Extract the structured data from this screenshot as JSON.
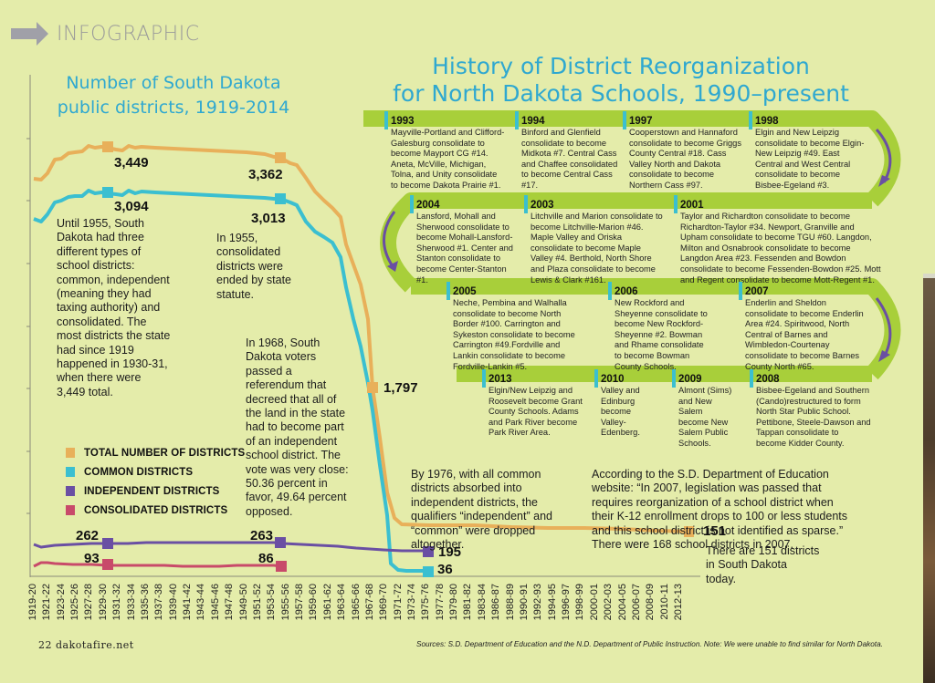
{
  "header": {
    "kicker": "INFOGRAPHIC",
    "kicker_icon": "arrow-right-icon"
  },
  "sd_chart": {
    "title_line1": "Number of South Dakota",
    "title_line2": "public districts, 1919-2014",
    "callouts": {
      "total_peak": "3,449",
      "total_1955": "3,362",
      "common_peak": "3,094",
      "common_1955": "3,013",
      "total_1968": "1,797",
      "independent_1930": "262",
      "independent_1955": "263",
      "independent_1976": "195",
      "consolidated_1930": "93",
      "consolidated_1955": "86",
      "common_1976": "36",
      "total_today": "151"
    },
    "notes": {
      "until_1955": "Until 1955, South Dakota had three different types of school districts: common, independent (meaning they had taxing authority) and consolidated. The most districts the state had since 1919 happened in 1930-31, when there were 3,449 total.",
      "in_1955": "In 1955, consolidated districts were ended by state statute.",
      "in_1968": "In 1968, South Dakota voters passed a referendum that decreed that all of the land in the state had to become part of an independent school district. The vote was very close: 50.36 percent in favor, 49.64 percent opposed.",
      "by_1976": "By 1976, with all common districts absorbed into independent districts, the qualifiers “independent” and “common” were dropped altogether.",
      "sd_doe": "According to the S.D. Department of Education website: “In 2007, legislation was passed that requires reorganization of a school district when their K-12 enrollment drops to 100 or less students and this school district is not identified as sparse.” There were 168 school districts in 2007.",
      "today": "There are 151 districts in South Dakota today."
    },
    "legend": [
      {
        "label": "TOTAL NUMBER OF DISTRICTS",
        "color": "#e8b05a"
      },
      {
        "label": "COMMON DISTRICTS",
        "color": "#3bbfd0"
      },
      {
        "label": "INDEPENDENT DISTRICTS",
        "color": "#6a4fa3"
      },
      {
        "label": "CONSOLIDATED DISTRICTS",
        "color": "#c84a6a"
      }
    ]
  },
  "chart_data": {
    "type": "line",
    "title": "Number of South Dakota public districts, 1919-2014",
    "xlabel": "",
    "ylabel": "",
    "x": [
      "1919-20",
      "1921-22",
      "1923-24",
      "1925-26",
      "1927-28",
      "1929-30",
      "1931-32",
      "1933-34",
      "1935-36",
      "1937-38",
      "1939-40",
      "1941-42",
      "1943-44",
      "1945-46",
      "1947-48",
      "1949-50",
      "1951-52",
      "1953-54",
      "1955-56",
      "1957-58",
      "1959-60",
      "1961-62",
      "1963-64",
      "1965-66",
      "1967-68",
      "1969-70",
      "1971-72",
      "1973-74",
      "1975-76",
      "1977-78",
      "1979-80",
      "1981-82",
      "1983-84",
      "1986-87",
      "1988-89",
      "1990-91",
      "1992-93",
      "1994-95",
      "1996-97",
      "1998-99",
      "2000-01",
      "2002-03",
      "2004-05",
      "2006-07",
      "2008-09",
      "2010-11",
      "2012-13"
    ],
    "series": [
      {
        "name": "Total number of districts",
        "color": "#e8b05a",
        "values": [
          3200,
          3300,
          3390,
          3410,
          3430,
          3449,
          3420,
          3430,
          3440,
          3430,
          3420,
          3415,
          3410,
          3405,
          3400,
          3390,
          3380,
          3370,
          3362,
          3300,
          3150,
          3000,
          2850,
          2500,
          1797,
          600,
          300,
          270,
          250,
          240,
          235,
          230,
          210,
          200,
          195,
          190,
          185,
          180,
          178,
          175,
          172,
          170,
          170,
          168,
          160,
          155,
          151
        ]
      },
      {
        "name": "Common districts",
        "color": "#3bbfd0",
        "values": [
          2880,
          2960,
          3040,
          3060,
          3070,
          3094,
          3070,
          3080,
          3090,
          3080,
          3070,
          3065,
          3060,
          3055,
          3050,
          3040,
          3030,
          3020,
          3013,
          2950,
          2800,
          2650,
          2500,
          2200,
          1600,
          300,
          60,
          40,
          36
        ]
      },
      {
        "name": "Independent districts",
        "color": "#6a4fa3",
        "values": [
          245,
          252,
          258,
          260,
          261,
          262,
          262,
          263,
          264,
          263,
          263,
          263,
          263,
          263,
          263,
          263,
          263,
          263,
          263,
          258,
          250,
          245,
          238,
          230,
          220,
          210,
          200,
          197,
          195
        ]
      },
      {
        "name": "Consolidated districts",
        "color": "#c84a6a",
        "values": [
          80,
          92,
          95,
          94,
          93,
          93,
          90,
          88,
          86,
          86,
          85,
          85,
          86,
          86,
          86,
          86,
          86,
          86,
          86
        ]
      }
    ],
    "annotations": [
      "3,449 (1929-30 total)",
      "3,094 (1929-30 common)",
      "3,362 (1955-56 total)",
      "3,013 (1955-56 common)",
      "1,797 (1967-68 total)",
      "262",
      "263",
      "93",
      "86",
      "195",
      "36",
      "151"
    ],
    "grid": false,
    "legend_position": "left-middle",
    "ylim": [
      0,
      3600
    ]
  },
  "timeline": {
    "title_line1": "History of District Reorganization",
    "title_line2": "for North Dakota Schools, 1990–present",
    "entries": [
      {
        "year": "1993",
        "text": "Mayville-Portland and Clifford-Galesburg consolidate to become Mayport CG #14. Aneta, McVille, Michigan, Tolna, and Unity consolidate to become Dakota Prairie #1."
      },
      {
        "year": "1994",
        "text": "Binford and Glenfield consolidate to become Midkota #7. Central Cass and Chaffee consolidated to become Central Cass #17."
      },
      {
        "year": "1997",
        "text": "Cooperstown and Hannaford consolidate to become Griggs County Central #18. Cass Valley North and Dakota consolidate to become Northern Cass #97."
      },
      {
        "year": "1998",
        "text": "Elgin and New Leipzig consolidate to become Elgin-New Leipzig #49. East Central and West Central consolidate to become Bisbee-Egeland #3."
      },
      {
        "year": "2004",
        "text": "Lansford, Mohall and Sherwood consolidate to become Mohall-Lansford-Sherwood #1. Center and Stanton consolidate to become Center-Stanton #1."
      },
      {
        "year": "2003",
        "text": "Litchville and Marion consolidate to become Litchville-Marion #46. Maple Valley and Oriska consolidate to become Maple Valley #4. Berthold, North Shore and Plaza consolidate to become Lewis & Clark #161."
      },
      {
        "year": "2001",
        "text": "Taylor and Richardton consolidate to become Richardton-Taylor #34. Newport, Granville and Upham consolidate to become TGU #60. Langdon, Milton and Osnabrook consolidate to become Langdon Area #23. Fessenden and Bowdon consolidate to become Fessenden-Bowdon #25. Mott and Regent consolidate to become Mott-Regent #1."
      },
      {
        "year": "2005",
        "text": "Neche, Pembina and Walhalla consolidate to become North Border #100. Carrington and Sykeston consolidate to become Carrington #49.Fordville and Lankin consolidate to become Fordville-Lankin #5."
      },
      {
        "year": "2006",
        "text": "New Rockford and Sheyenne consolidate to become New Rockford-Sheyenne #2. Bowman and Rhame consolidate to become Bowman County Schools."
      },
      {
        "year": "2007",
        "text": "Enderlin and Sheldon consolidate to become Enderlin Area #24. Spiritwood, North Central of Barnes and Wimbledon-Courtenay consolidate to become Barnes County North #65."
      },
      {
        "year": "2013",
        "text": "Elgin/New Leipzig and Roosevelt become Grant County Schools. Adams and Park River become Park River Area."
      },
      {
        "year": "2010",
        "text": "Valley and Edinburg become Valley-Edenberg."
      },
      {
        "year": "2009",
        "text": "Almont (Sims) and New Salem become New Salem Public Schools."
      },
      {
        "year": "2008",
        "text": "Bisbee-Egeland and Southern (Cando)restructured to form North Star Public School. Pettibone, Steele-Dawson and Tappan consolidate to become Kidder County."
      }
    ]
  },
  "footer": {
    "page": "22  dakotafire.net",
    "sources": "Sources: S.D. Department of Education and the N.D. Department of Public Instruction. Note: We were unable to find similar for North Dakota."
  }
}
